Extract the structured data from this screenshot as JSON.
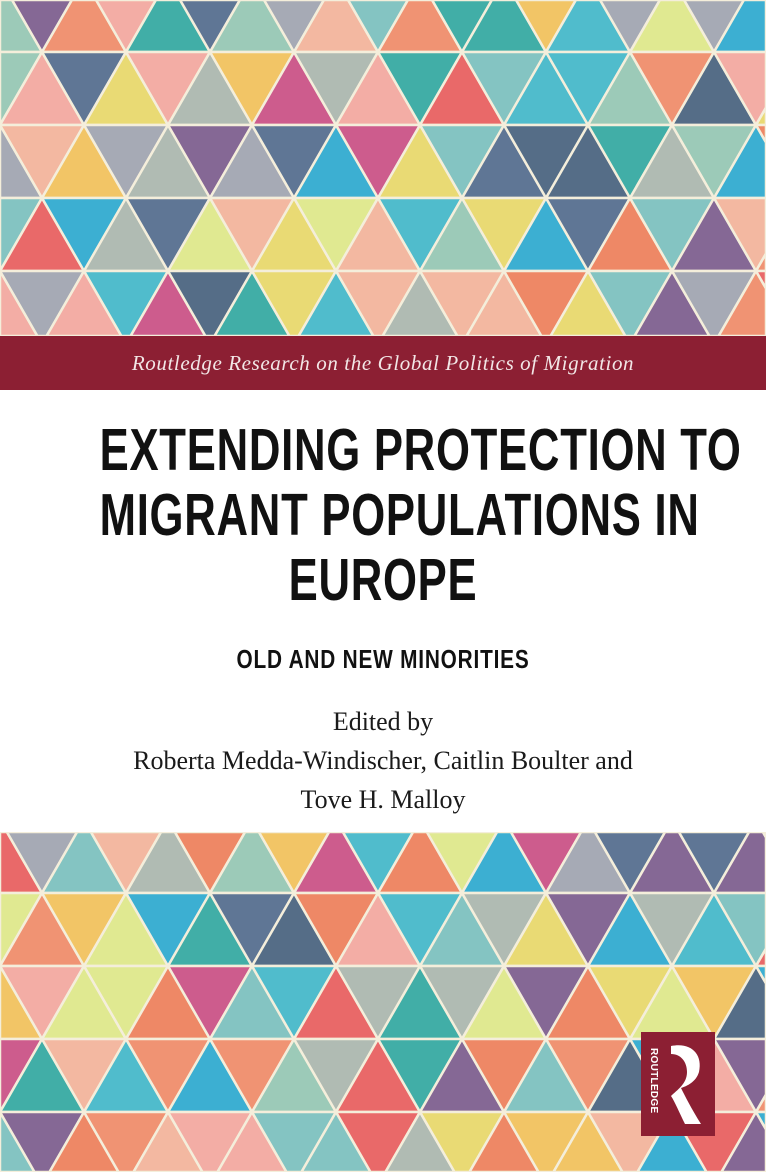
{
  "cover": {
    "series": "Routledge Research on the Global Politics of Migration",
    "title_lines": [
      "EXTENDING PROTECTION TO",
      "MIGRANT POPULATIONS IN",
      "EUROPE"
    ],
    "subtitle": "OLD AND NEW MINORITIES",
    "edited_by": "Edited by",
    "editors_lines": [
      "Roberta Medda-Windischer, Caitlin Boulter and",
      "Tove H. Malloy"
    ],
    "publisher_logo": "ROUTLEDGE"
  },
  "colors": {
    "band": "#8c1f33",
    "palette": [
      "#f3b39c",
      "#4f6a8f",
      "#ee7e5a",
      "#93c7b5",
      "#e8d96a",
      "#3fb7cc",
      "#f08a69",
      "#9ea3b2",
      "#dfe98a",
      "#e95b5e",
      "#7a5a8e",
      "#2ea8a2",
      "#45607f",
      "#f4a7a0",
      "#29a9d2",
      "#a9b6b0",
      "#c94d86",
      "#f2c15a",
      "#79c0c0"
    ]
  }
}
